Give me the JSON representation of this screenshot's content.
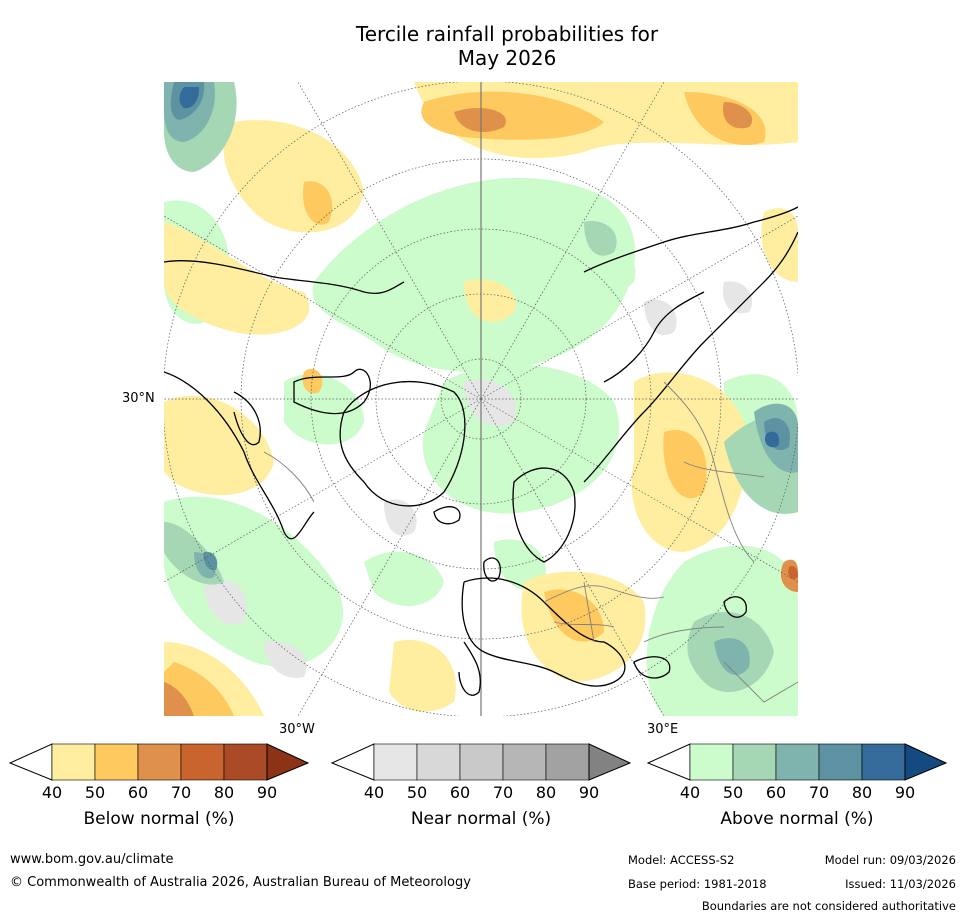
{
  "title": {
    "line1": "Tercile rainfall probabilities for",
    "line2": "May 2026"
  },
  "map": {
    "lat_label": "30°N",
    "lon_labels": {
      "west": "30°W",
      "east": "30°E"
    },
    "projection": "north-polar-stereographic"
  },
  "colorbars": [
    {
      "id": "below",
      "title": "Below normal (%)",
      "ticks": [
        "40",
        "50",
        "60",
        "70",
        "80",
        "90"
      ],
      "colors": [
        "#ffeda0",
        "#fec95e",
        "#df914b",
        "#c9642f",
        "#aa4a27",
        "#8b3217"
      ],
      "under_color": "#ffffff"
    },
    {
      "id": "near",
      "title": "Near normal (%)",
      "ticks": [
        "40",
        "50",
        "60",
        "70",
        "80",
        "90"
      ],
      "colors": [
        "#e6e6e6",
        "#d8d8d8",
        "#c9c9c9",
        "#b6b6b6",
        "#a2a2a2",
        "#828282"
      ],
      "under_color": "#ffffff"
    },
    {
      "id": "above",
      "title": "Above normal (%)",
      "ticks": [
        "40",
        "50",
        "60",
        "70",
        "80",
        "90"
      ],
      "colors": [
        "#ccfbcc",
        "#a5d7b5",
        "#7fb4ae",
        "#5d92a3",
        "#356b9a",
        "#144a7f"
      ],
      "under_color": "#ffffff"
    }
  ],
  "footer": {
    "website": "www.bom.gov.au/climate",
    "copyright": "© Commonwealth of Australia 2026, Australian Bureau of Meteorology",
    "model": "Model: ACCESS-S2",
    "model_run": "Model run: 09/03/2026",
    "base_period": "Base period: 1981-2018",
    "issued": "Issued: 11/03/2026",
    "disclaimer": "Boundaries are not considered authoritative"
  }
}
